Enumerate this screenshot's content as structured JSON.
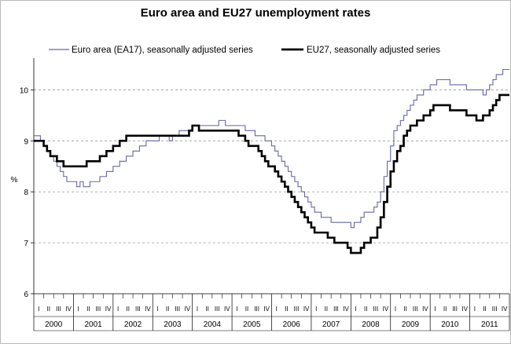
{
  "chart_data": {
    "type": "line",
    "title": "Euro area and EU27 unemployment rates",
    "xlabel": "",
    "ylabel": "%",
    "ylim": [
      6,
      10.5
    ],
    "yticks": [
      6,
      7,
      8,
      9,
      10
    ],
    "grid": "horizontal dashed",
    "legend_position": "top",
    "quarter_labels": [
      "I",
      "II",
      "III",
      "IV"
    ],
    "years": [
      "2000",
      "2001",
      "2002",
      "2003",
      "2004",
      "2005",
      "2006",
      "2007",
      "2008",
      "2009",
      "2010",
      "2011"
    ],
    "x_start": "2000-01",
    "x_frequency": "monthly",
    "series": [
      {
        "name": "Euro area (EA17), seasonally adjusted series",
        "color": "#6666aa",
        "values": [
          9.1,
          9.1,
          9.0,
          8.9,
          8.8,
          8.7,
          8.6,
          8.5,
          8.4,
          8.3,
          8.2,
          8.2,
          8.2,
          8.1,
          8.2,
          8.1,
          8.1,
          8.2,
          8.2,
          8.2,
          8.3,
          8.3,
          8.4,
          8.4,
          8.5,
          8.5,
          8.6,
          8.6,
          8.7,
          8.7,
          8.8,
          8.8,
          8.9,
          8.9,
          9.0,
          9.0,
          9.0,
          9.0,
          9.1,
          9.1,
          9.1,
          9.0,
          9.1,
          9.1,
          9.2,
          9.2,
          9.2,
          9.2,
          9.3,
          9.3,
          9.3,
          9.3,
          9.3,
          9.3,
          9.3,
          9.3,
          9.4,
          9.4,
          9.3,
          9.3,
          9.3,
          9.3,
          9.3,
          9.3,
          9.2,
          9.2,
          9.2,
          9.1,
          9.1,
          9.1,
          9.0,
          9.0,
          8.9,
          8.8,
          8.7,
          8.6,
          8.5,
          8.4,
          8.3,
          8.2,
          8.1,
          8.0,
          7.9,
          7.8,
          7.7,
          7.6,
          7.6,
          7.5,
          7.5,
          7.5,
          7.4,
          7.4,
          7.4,
          7.4,
          7.4,
          7.4,
          7.3,
          7.4,
          7.4,
          7.5,
          7.6,
          7.6,
          7.6,
          7.7,
          7.8,
          8.0,
          8.3,
          8.6,
          8.9,
          9.2,
          9.3,
          9.4,
          9.5,
          9.6,
          9.7,
          9.8,
          9.9,
          9.9,
          10.0,
          10.0,
          10.1,
          10.1,
          10.2,
          10.2,
          10.2,
          10.2,
          10.1,
          10.1,
          10.1,
          10.1,
          10.1,
          10.0,
          10.0,
          10.0,
          10.0,
          10.0,
          9.9,
          10.0,
          10.1,
          10.2,
          10.3,
          10.3,
          10.4,
          10.4
        ]
      },
      {
        "name": "EU27, seasonally adjusted series",
        "color": "#000000",
        "values": [
          9.0,
          9.0,
          9.0,
          8.9,
          8.8,
          8.7,
          8.7,
          8.6,
          8.6,
          8.5,
          8.5,
          8.5,
          8.5,
          8.5,
          8.5,
          8.5,
          8.6,
          8.6,
          8.6,
          8.6,
          8.7,
          8.7,
          8.8,
          8.8,
          8.9,
          8.9,
          9.0,
          9.0,
          9.1,
          9.1,
          9.1,
          9.1,
          9.1,
          9.1,
          9.1,
          9.1,
          9.1,
          9.1,
          9.1,
          9.1,
          9.1,
          9.1,
          9.1,
          9.1,
          9.1,
          9.1,
          9.1,
          9.2,
          9.3,
          9.3,
          9.2,
          9.2,
          9.2,
          9.2,
          9.2,
          9.2,
          9.2,
          9.2,
          9.2,
          9.2,
          9.2,
          9.2,
          9.1,
          9.1,
          9.0,
          8.9,
          8.9,
          8.9,
          8.8,
          8.7,
          8.6,
          8.5,
          8.5,
          8.4,
          8.3,
          8.2,
          8.1,
          8.0,
          7.9,
          7.8,
          7.7,
          7.6,
          7.5,
          7.4,
          7.3,
          7.2,
          7.2,
          7.2,
          7.2,
          7.1,
          7.1,
          7.0,
          7.0,
          7.0,
          7.0,
          6.9,
          6.8,
          6.8,
          6.8,
          6.9,
          7.0,
          7.0,
          7.1,
          7.1,
          7.3,
          7.5,
          7.8,
          8.1,
          8.4,
          8.6,
          8.8,
          8.9,
          9.1,
          9.2,
          9.3,
          9.3,
          9.4,
          9.4,
          9.5,
          9.5,
          9.6,
          9.7,
          9.7,
          9.7,
          9.7,
          9.7,
          9.6,
          9.6,
          9.6,
          9.6,
          9.6,
          9.5,
          9.5,
          9.5,
          9.4,
          9.4,
          9.5,
          9.5,
          9.6,
          9.7,
          9.8,
          9.9,
          9.9,
          9.9
        ]
      }
    ]
  }
}
